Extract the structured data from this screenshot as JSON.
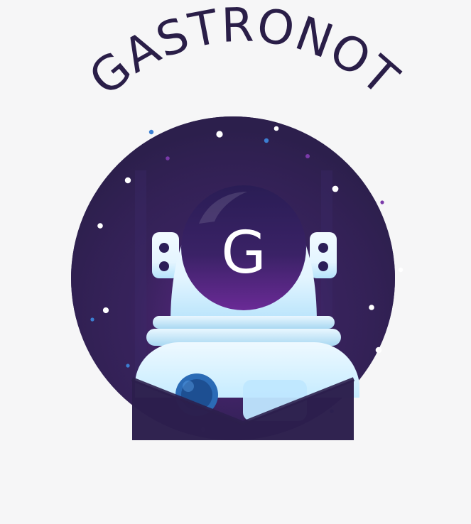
{
  "logo": {
    "brand_name": "GASTRONOT",
    "helmet_letter": "G"
  },
  "colors": {
    "background": "#f6f6f7",
    "title_text": "#2a1e48",
    "circle_base": "#2c1f4c",
    "glow_purple": "#6a2a96",
    "helmet_light": "#e9f7ff",
    "helmet_shadow": "#a9d8f2",
    "visor_dark": "#2a1d55",
    "visor_purple": "#5a2a86",
    "visor_letter": "#ffffff",
    "accent_blue": "#2f67b0"
  },
  "icons": {
    "badge": "astronaut-helmet-badge",
    "stars": "star-dots"
  }
}
